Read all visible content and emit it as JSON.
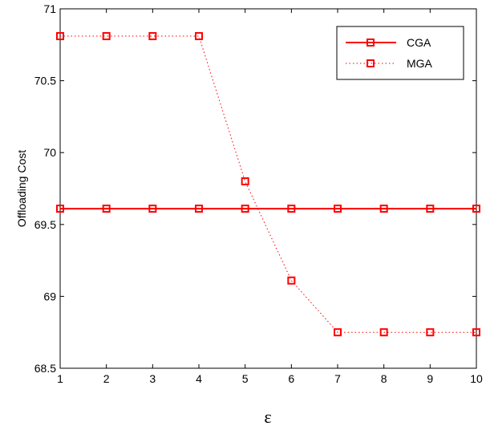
{
  "chart_data": {
    "type": "line",
    "title": "",
    "xlabel": "ε",
    "ylabel": "Offloading Cost",
    "xlim": [
      1,
      10
    ],
    "ylim": [
      68.5,
      71
    ],
    "x": [
      1,
      2,
      3,
      4,
      5,
      6,
      7,
      8,
      9,
      10
    ],
    "xticks": [
      "1",
      "2",
      "3",
      "4",
      "5",
      "6",
      "7",
      "8",
      "9",
      "10"
    ],
    "yticks": [
      "68.5",
      "69",
      "69.5",
      "70",
      "70.5",
      "71"
    ],
    "yticks_values": [
      68.5,
      69,
      69.5,
      70,
      70.5,
      71
    ],
    "grid": false,
    "legend_position": "top-right",
    "series": [
      {
        "name": "CGA",
        "values": [
          69.61,
          69.61,
          69.61,
          69.61,
          69.61,
          69.61,
          69.61,
          69.61,
          69.61,
          69.61
        ],
        "color": "#ff0000",
        "line_style": "solid",
        "marker": "square"
      },
      {
        "name": "MGA",
        "values": [
          70.81,
          70.81,
          70.81,
          70.81,
          69.8,
          69.11,
          68.75,
          68.75,
          68.75,
          68.75
        ],
        "color": "#ff0000",
        "line_style": "dotted",
        "marker": "square"
      }
    ]
  }
}
